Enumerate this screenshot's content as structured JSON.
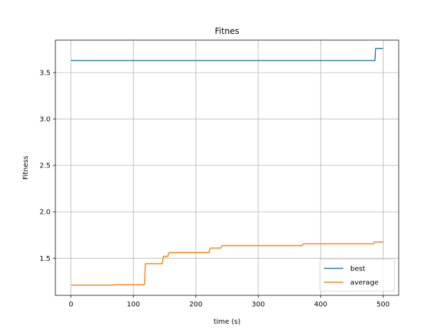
{
  "chart_data": {
    "type": "line",
    "title": "Fitnes",
    "xlabel": "time (s)",
    "ylabel": "Fitness",
    "xlim": [
      -25,
      525
    ],
    "ylim": [
      1.1,
      3.85
    ],
    "xticks": [
      0,
      100,
      200,
      300,
      400,
      500
    ],
    "yticks": [
      1.5,
      2.0,
      2.5,
      3.0,
      3.5
    ],
    "grid": true,
    "legend_position": "lower right",
    "series": [
      {
        "name": "best",
        "color": "#1f77b4",
        "points": [
          [
            0,
            3.63
          ],
          [
            487,
            3.63
          ],
          [
            488,
            3.76
          ],
          [
            500,
            3.76
          ]
        ]
      },
      {
        "name": "average",
        "color": "#ff7f0e",
        "points": [
          [
            0,
            1.21
          ],
          [
            68,
            1.21
          ],
          [
            70,
            1.215
          ],
          [
            117,
            1.215
          ],
          [
            118,
            1.22
          ],
          [
            119,
            1.44
          ],
          [
            146,
            1.44
          ],
          [
            148,
            1.52
          ],
          [
            155,
            1.52
          ],
          [
            157,
            1.56
          ],
          [
            221,
            1.56
          ],
          [
            223,
            1.61
          ],
          [
            240,
            1.61
          ],
          [
            242,
            1.635
          ],
          [
            370,
            1.635
          ],
          [
            372,
            1.655
          ],
          [
            484,
            1.655
          ],
          [
            486,
            1.675
          ],
          [
            500,
            1.675
          ]
        ]
      }
    ]
  }
}
